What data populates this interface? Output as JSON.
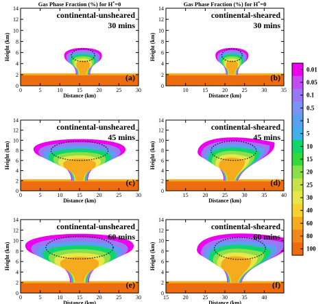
{
  "figure": {
    "colorbar": {
      "levels": [
        "0.01",
        "0.05",
        "0.1",
        "0.5",
        "1",
        "5",
        "10",
        "15",
        "20",
        "25",
        "30",
        "40",
        "60",
        "80",
        "100"
      ],
      "colors": [
        "#ee00ee",
        "#c24cf2",
        "#9a77f5",
        "#7b93f2",
        "#5a9ff0",
        "#3fb0e8",
        "#0fd66a",
        "#33d93a",
        "#8be04a",
        "#c6e34a",
        "#e9e64a",
        "#f6d12f",
        "#f6ab1f",
        "#f2881a",
        "#ed6c10"
      ]
    },
    "contour_dotted_color": "#000000"
  },
  "chart_data": [
    {
      "type": "heatmap",
      "panel": "a",
      "column_title": "Gas Phase Fraction (%) for H*=0",
      "case": "continental-unsheared",
      "time": "30 mins",
      "xlabel": "Distance (km)",
      "ylabel": "Height (km)",
      "xlim": [
        0,
        30
      ],
      "ylim": [
        0,
        14
      ],
      "xticks": [
        "0",
        "5",
        "10",
        "15",
        "20",
        "25",
        "30"
      ],
      "yticks": [
        "0",
        "2",
        "4",
        "6",
        "8",
        "10",
        "12",
        "14"
      ]
    },
    {
      "type": "heatmap",
      "panel": "b",
      "column_title": "Gas Phase Fraction (%) for H*=0",
      "case": "continental-sheared",
      "time": "30 mins",
      "xlabel": "Distance (km)",
      "ylabel": "Height (km)",
      "xlim": [
        5,
        35
      ],
      "ylim": [
        0,
        14
      ],
      "xticks": [
        "10",
        "15",
        "20",
        "25",
        "30",
        "35"
      ],
      "yticks": [
        "0",
        "2",
        "4",
        "6",
        "8",
        "10",
        "12",
        "14"
      ]
    },
    {
      "type": "heatmap",
      "panel": "c",
      "case": "continental-unsheared",
      "time": "45 mins",
      "xlabel": "Distance (km)",
      "ylabel": "Height (km)",
      "xlim": [
        0,
        30
      ],
      "ylim": [
        0,
        14
      ],
      "xticks": [
        "0",
        "5",
        "10",
        "15",
        "20",
        "25",
        "30"
      ],
      "yticks": [
        "0",
        "2",
        "4",
        "6",
        "8",
        "10",
        "12",
        "14"
      ]
    },
    {
      "type": "heatmap",
      "panel": "d",
      "case": "continental-sheared",
      "time": "45 mins",
      "xlabel": "Distance (km)",
      "ylabel": "Height (km)",
      "xlim": [
        10,
        40
      ],
      "ylim": [
        0,
        14
      ],
      "xticks": [
        "15",
        "20",
        "25",
        "30",
        "35",
        "40"
      ],
      "yticks": [
        "0",
        "2",
        "4",
        "6",
        "8",
        "10",
        "12",
        "14"
      ]
    },
    {
      "type": "heatmap",
      "panel": "e",
      "case": "continental-unsheared",
      "time": "60 mins",
      "xlabel": "Distance (km)",
      "ylabel": "Height (km)",
      "xlim": [
        0,
        30
      ],
      "ylim": [
        0,
        14
      ],
      "xticks": [
        "0",
        "5",
        "10",
        "15",
        "20",
        "25",
        "30"
      ],
      "yticks": [
        "0",
        "2",
        "4",
        "6",
        "8",
        "10",
        "12",
        "14"
      ]
    },
    {
      "type": "heatmap",
      "panel": "f",
      "case": "continental-sheared",
      "time": "60 mins",
      "xlabel": "Distance (km)",
      "ylabel": "Height (km)",
      "xlim": [
        15,
        45
      ],
      "ylim": [
        0,
        14
      ],
      "xticks": [
        "15",
        "20",
        "25",
        "30",
        "35",
        "40"
      ],
      "yticks": [
        "0",
        "2",
        "4",
        "6",
        "8",
        "10",
        "12",
        "14"
      ]
    }
  ]
}
